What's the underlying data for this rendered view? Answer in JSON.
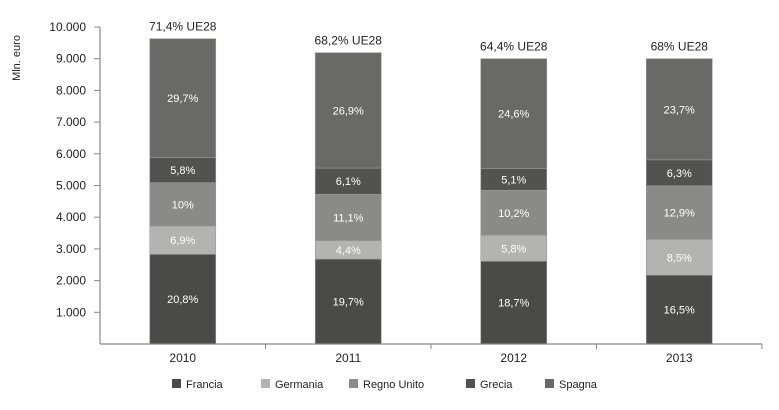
{
  "chart_data": {
    "type": "bar",
    "stacked": true,
    "ylabel": "Mln. euro",
    "ylim": [
      0,
      10000
    ],
    "yticks": [
      "1.000",
      "2.000",
      "3.000",
      "4.000",
      "5.000",
      "6.000",
      "7.000",
      "8.000",
      "9.000",
      "10.000"
    ],
    "yticks_values": [
      1000,
      2000,
      3000,
      4000,
      5000,
      6000,
      7000,
      8000,
      9000,
      10000
    ],
    "categories": [
      "2010",
      "2011",
      "2012",
      "2013"
    ],
    "totals_labels": [
      "71,4% UE28",
      "68,2% UE28",
      "64,4% UE28",
      "68% UE28"
    ],
    "series": [
      {
        "name": "Francia",
        "color": "#4a4a48",
        "values": [
          2830,
          2680,
          2610,
          2170
        ],
        "labels": [
          "20,8%",
          "19,7%",
          "18,7%",
          "16,5%"
        ]
      },
      {
        "name": "Germania",
        "color": "#b3b3b1",
        "values": [
          890,
          580,
          820,
          1130
        ],
        "labels": [
          "6,9%",
          "4,4%",
          "5,8%",
          "8,5%"
        ]
      },
      {
        "name": "Regno Unito",
        "color": "#8a8b89",
        "values": [
          1370,
          1460,
          1420,
          1690
        ],
        "labels": [
          "10%",
          "11,1%",
          "10,2%",
          "12,9%"
        ]
      },
      {
        "name": "Grecia",
        "color": "#525350",
        "values": [
          790,
          830,
          690,
          820
        ],
        "labels": [
          "5,8%",
          "6,1%",
          "5,1%",
          "6,3%"
        ]
      },
      {
        "name": "Spagna",
        "color": "#696a68",
        "values": [
          3750,
          3640,
          3460,
          3190
        ],
        "labels": [
          "29,7%",
          "26,9%",
          "24,6%",
          "23,7%"
        ]
      }
    ],
    "legend_position": "bottom",
    "grid": false
  }
}
